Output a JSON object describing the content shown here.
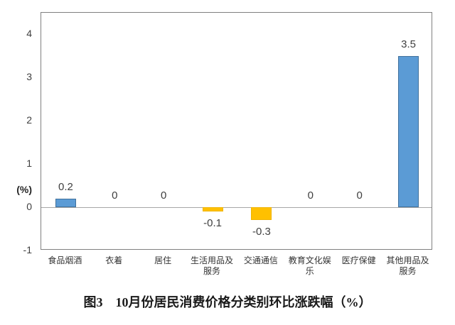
{
  "chart_data": {
    "type": "bar",
    "title": "图3　10月份居民消费价格分类别环比涨跌幅（%）",
    "ylabel": "(%)",
    "xlabel": "",
    "categories": [
      "食品烟酒",
      "衣着",
      "居住",
      "生活用品及服务",
      "交通通信",
      "教育文化娱乐",
      "医疗保健",
      "其他用品及服务"
    ],
    "category_lines": [
      [
        "食品烟酒"
      ],
      [
        "衣着"
      ],
      [
        "居住"
      ],
      [
        "生活用品及",
        "服务"
      ],
      [
        "交通通信"
      ],
      [
        "教育文化娱",
        "乐"
      ],
      [
        "医疗保健"
      ],
      [
        "其他用品及",
        "服务"
      ]
    ],
    "values": [
      0.2,
      0,
      0,
      -0.1,
      -0.3,
      0,
      0,
      3.5
    ],
    "value_labels": [
      "0.2",
      "0",
      "0",
      "-0.1",
      "-0.3",
      "0",
      "0",
      "3.5"
    ],
    "y_ticks": [
      4,
      3,
      2,
      1,
      0,
      -1
    ],
    "ylim": [
      -1,
      4.5
    ],
    "grid": false,
    "legend": null,
    "colors": {
      "positive_bar": "#5B9BD5",
      "positive_bar_border": "#41719C",
      "negative_bar": "#FFC000",
      "negative_bar_border": "#F0B400",
      "zero_line": "#A6A6A6",
      "plot_border": "#808080",
      "tick_text": "#3f3f3f",
      "title_text": "#1a1a1a"
    }
  }
}
